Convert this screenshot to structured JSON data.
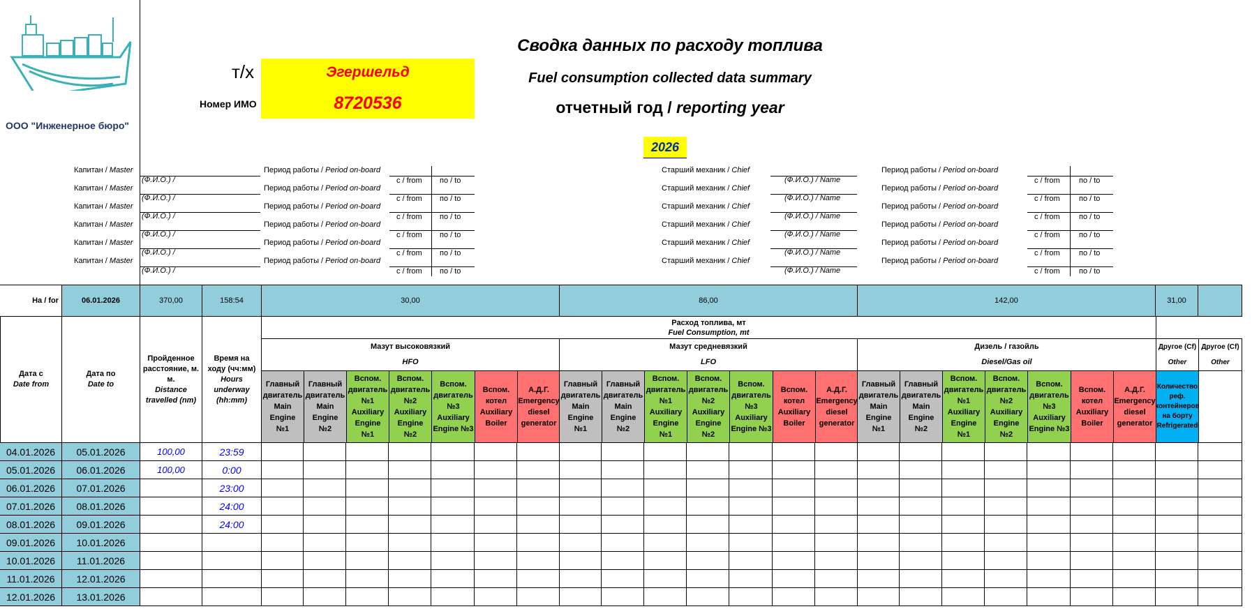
{
  "company": {
    "name": "ООО \"Инженерное бюро\""
  },
  "vessel": {
    "prefix": "т/х",
    "name": "Эгершельд",
    "imo_label": "Номер ИМО",
    "imo": "8720536"
  },
  "title": {
    "ru": "Сводка данных по расходу топлива",
    "en": "Fuel consumption collected data summary",
    "year_label_ru": "отчетный год / ",
    "year_label_en": "reporting year",
    "year": "2026"
  },
  "crew": {
    "master_label": "Капитан / ",
    "master_label_en": "Master",
    "name_label": "(Ф.И.О.) /",
    "period_label": "Период работы / ",
    "period_label_en": "Period on-board",
    "from_label": "с / from",
    "to_label": "по / to",
    "chief_label": "Старший механик / ",
    "chief_label_en": "Chief",
    "chief_name_label": "(Ф.И.О.) / Name"
  },
  "summary": {
    "for_label": "На / for",
    "date": "06.01.2026",
    "distance": "370,00",
    "hours": "158:54",
    "hfo": "30,00",
    "lfo": "86,00",
    "diesel": "142,00",
    "other": "31,00"
  },
  "headers": {
    "date_from": "Дата с",
    "date_from_en": "Date from",
    "date_to": "Дата по",
    "date_to_en": "Date to",
    "distance_ru": "Пройденное расстояние, м. м.",
    "distance_en": "Distance travelled (nm)",
    "hours_ru": "Время на ходу (чч:мм)",
    "hours_en": "Hours underway (hh:mm)",
    "fuel_ru": "Расход топлива, мт",
    "fuel_en": "Fuel Consumption, mt",
    "hfo_ru": "Мазут высоковязкий",
    "hfo_en": "HFO",
    "lfo_ru": "Мазут средневязкий",
    "lfo_en": "LFO",
    "diesel_ru": "Дизель / газойль",
    "diesel_en": "Diesel/Gas oil",
    "other1_ru": "Другое (Cf)",
    "other1_en": "Other",
    "other2_ru": "Другое (Cf)",
    "other2_en": "Other",
    "reefer": "Количество реф. контейнеров на борту Refrigerated"
  },
  "engine_cols": [
    {
      "label": "Главный двигатель Main Engine №1",
      "color": "#bfbfbf"
    },
    {
      "label": "Главный двигатель Main Engine №2",
      "color": "#bfbfbf"
    },
    {
      "label": "Вспом. двигатель №1 Auxiliary Engine №1",
      "color": "#92d050"
    },
    {
      "label": "Вспом. двигатель №2 Auxiliary Engine №2",
      "color": "#92d050"
    },
    {
      "label": "Вспом. двигатель №3 Auxiliary Engine №3",
      "color": "#92d050"
    },
    {
      "label": "Вспом. котел Auxiliary Boiler",
      "color": "#ff7070"
    },
    {
      "label": "А.Д.Г. Emergency diesel generator",
      "color": "#ff7070"
    }
  ],
  "rows": [
    {
      "from": "04.01.2026",
      "to": "05.01.2026",
      "distance": "100,00",
      "hours": "23:59"
    },
    {
      "from": "05.01.2026",
      "to": "06.01.2026",
      "distance": "100,00",
      "hours": "0:00"
    },
    {
      "from": "06.01.2026",
      "to": "07.01.2026",
      "distance": "",
      "hours": "23:00"
    },
    {
      "from": "07.01.2026",
      "to": "08.01.2026",
      "distance": "",
      "hours": "24:00"
    },
    {
      "from": "08.01.2026",
      "to": "09.01.2026",
      "distance": "",
      "hours": "24:00"
    },
    {
      "from": "09.01.2026",
      "to": "10.01.2026",
      "distance": "",
      "hours": ""
    },
    {
      "from": "10.01.2026",
      "to": "11.01.2026",
      "distance": "",
      "hours": ""
    },
    {
      "from": "11.01.2026",
      "to": "12.01.2026",
      "distance": "",
      "hours": ""
    },
    {
      "from": "12.01.2026",
      "to": "13.01.2026",
      "distance": "",
      "hours": ""
    }
  ]
}
